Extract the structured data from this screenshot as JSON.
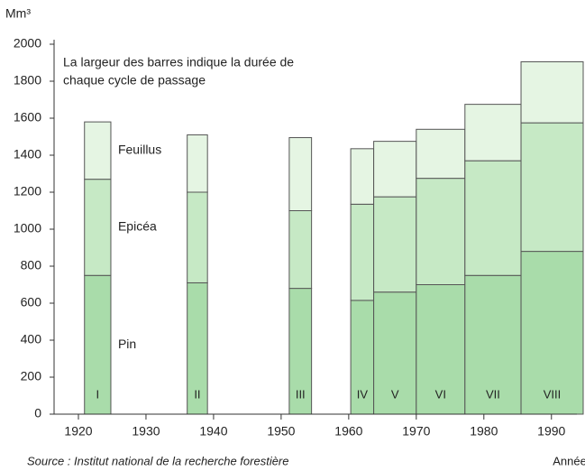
{
  "chart_data": {
    "type": "variable-width-stacked-bar",
    "y_unit": "Mm³",
    "annotation": [
      "La largeur des barres indique la durée de",
      "chaque cycle de passage"
    ],
    "source": "Source : Institut national de la recherche forestière",
    "x_label": "Année",
    "categories": [
      "I",
      "II",
      "III",
      "IV",
      "V",
      "VI",
      "VII",
      "VIII"
    ],
    "x_ranges": [
      [
        1920.9,
        1924.8
      ],
      [
        1936.1,
        1939.1
      ],
      [
        1951.2,
        1954.5
      ],
      [
        1960.3,
        1963.7
      ],
      [
        1963.7,
        1970
      ],
      [
        1970,
        1977.2
      ],
      [
        1977.2,
        1985.5
      ],
      [
        1985.5,
        1994.7
      ]
    ],
    "series": [
      {
        "name": "Pin",
        "color": "#a9dcaa",
        "values": [
          750,
          710,
          680,
          615,
          660,
          700,
          750,
          880
        ]
      },
      {
        "name": "Epicéa",
        "color": "#c6e9c5",
        "values": [
          520,
          490,
          420,
          520,
          515,
          575,
          620,
          695
        ]
      },
      {
        "name": "Feuillus",
        "color": "#e5f5e3",
        "values": [
          310,
          310,
          395,
          300,
          300,
          265,
          305,
          330
        ]
      }
    ],
    "xlim": [
      1916.4,
      1994.7
    ],
    "xticks": [
      1920,
      1930,
      1940,
      1950,
      1960,
      1970,
      1980,
      1990
    ],
    "ylim": [
      0,
      2000
    ],
    "yticks": [
      0,
      200,
      400,
      600,
      800,
      1000,
      1200,
      1400,
      1600,
      1800,
      2000
    ]
  }
}
